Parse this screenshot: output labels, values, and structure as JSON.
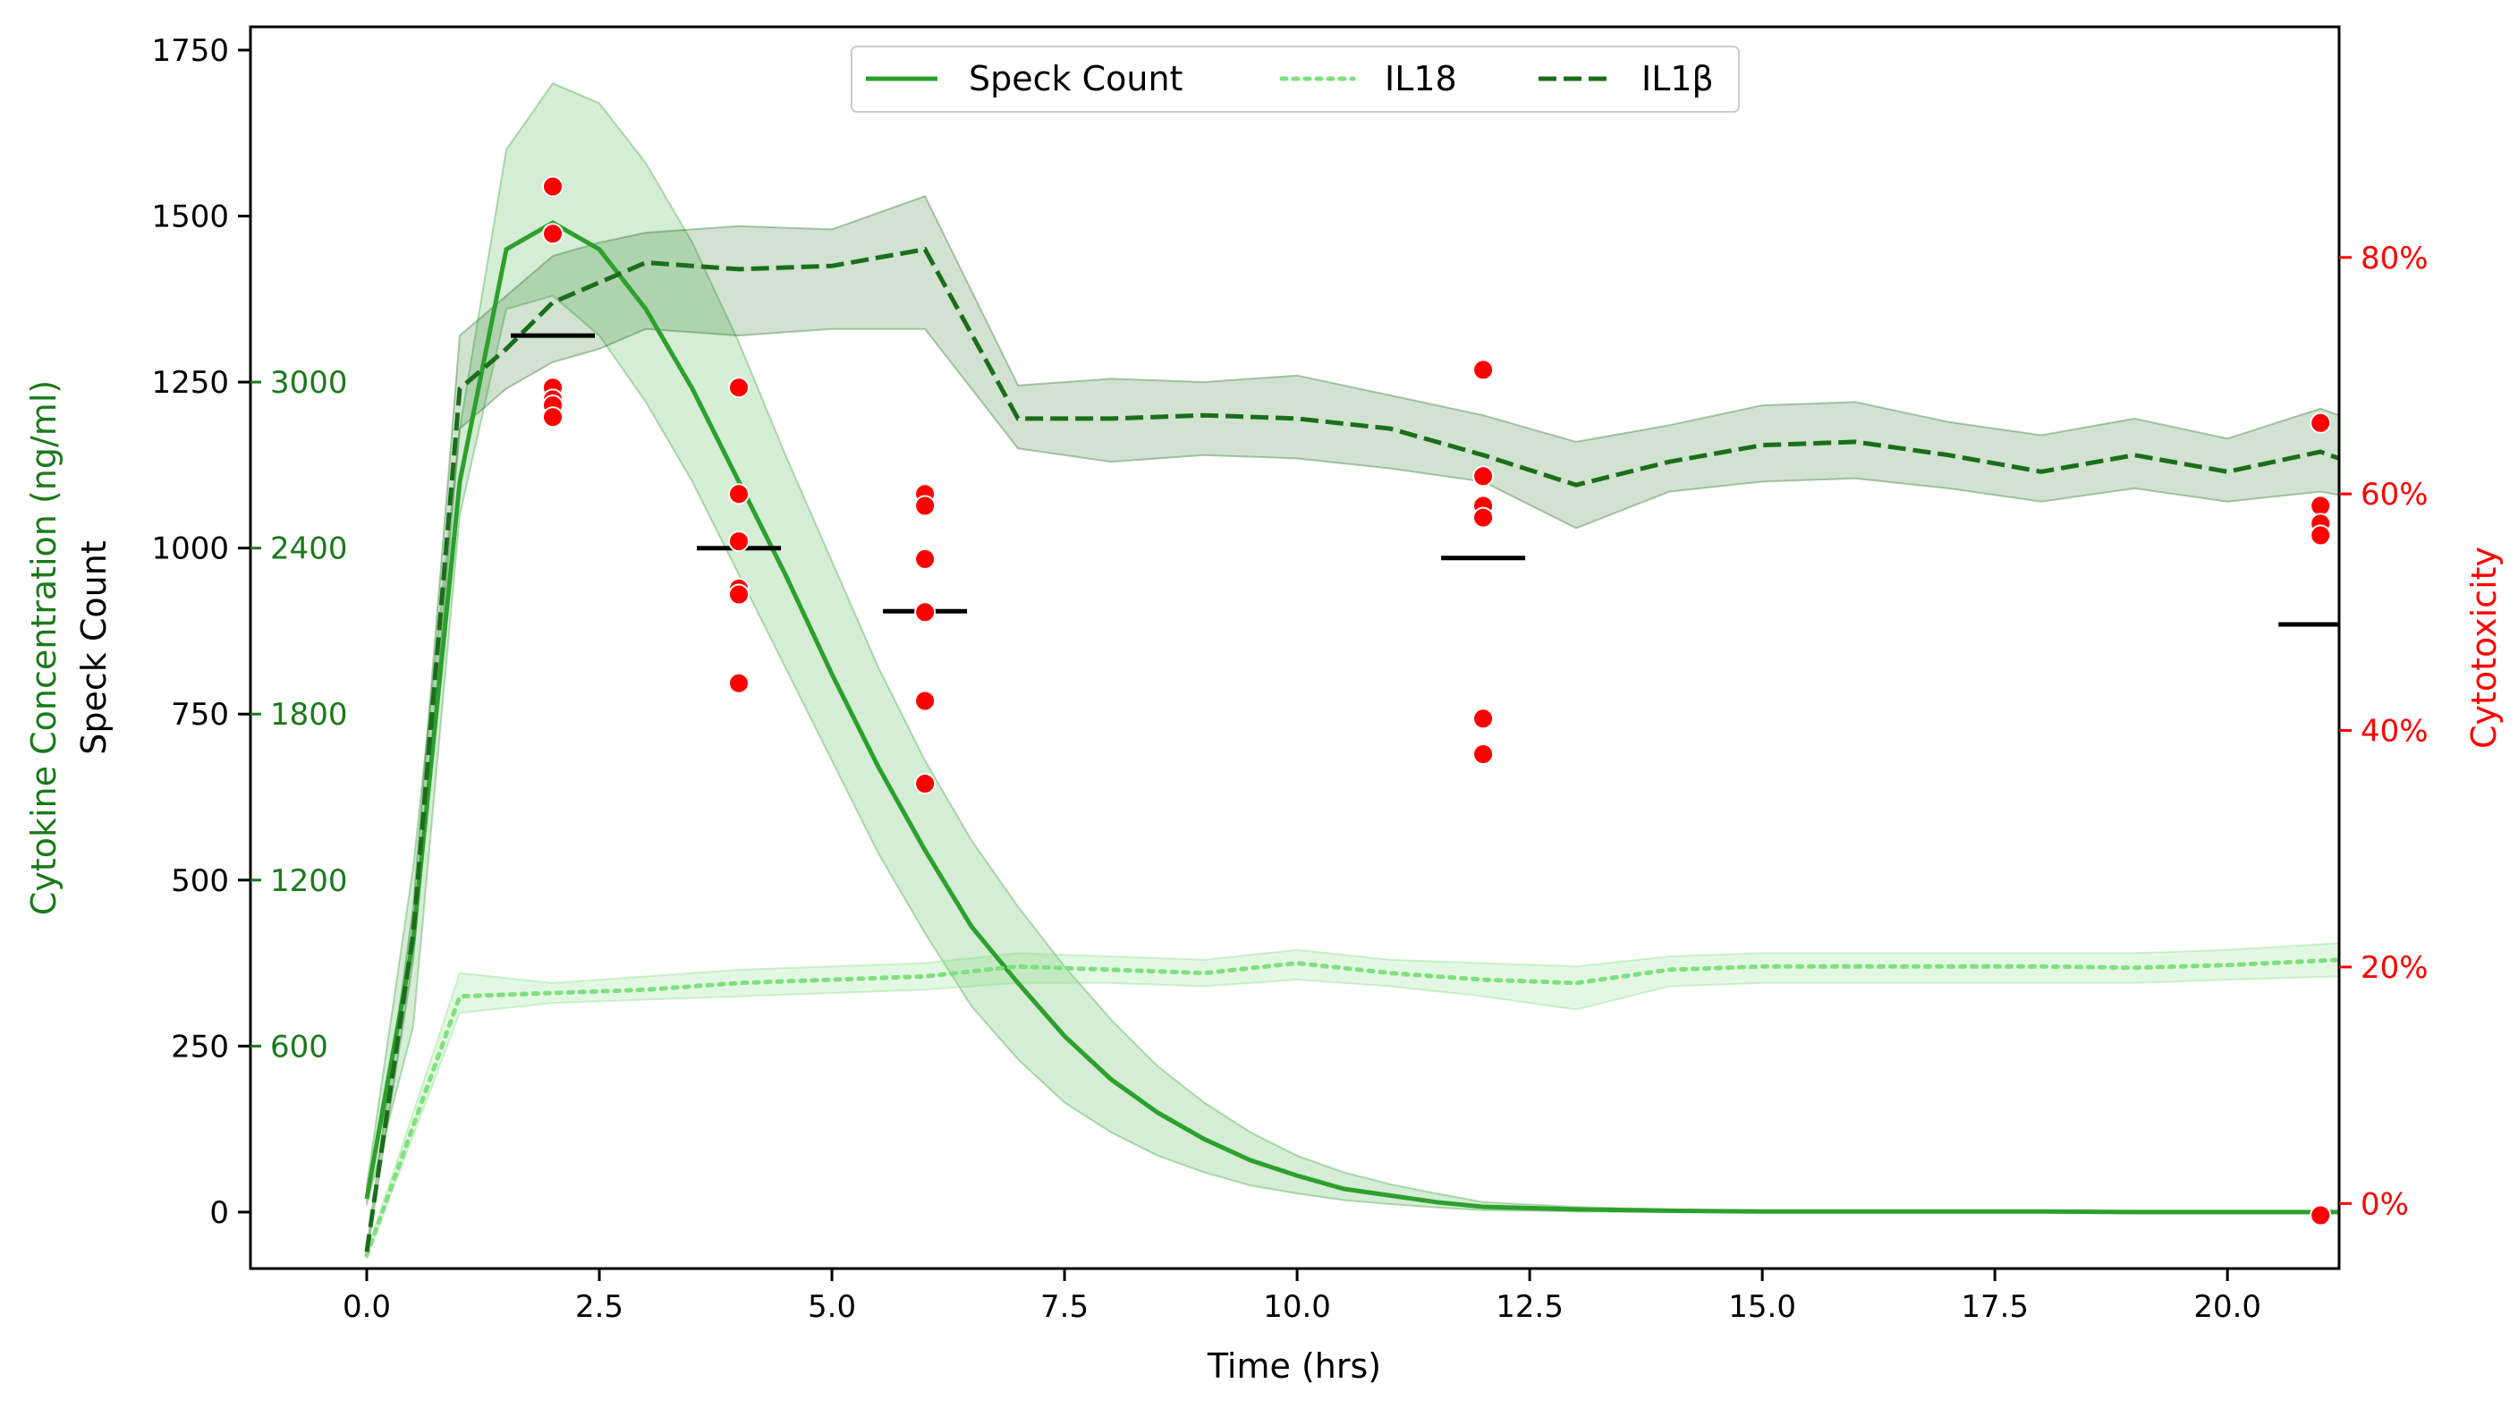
{
  "chart_data": {
    "type": "line",
    "title": "",
    "xlabel": "Time (hrs)",
    "xlim": [
      -1.25,
      21.2
    ],
    "x_ticks": [
      "0.0",
      "2.5",
      "5.0",
      "7.5",
      "10.0",
      "12.5",
      "15.0",
      "17.5",
      "20.0"
    ],
    "left_axis": {
      "label": "Speck Count",
      "ylim": [
        -85,
        1785
      ],
      "ticks": [
        "0",
        "250",
        "500",
        "750",
        "1000",
        "1250",
        "1500",
        "1750"
      ],
      "color": "#000000"
    },
    "cytokine_axis": {
      "label": "Cytokine Concentration (ng/ml)",
      "ticks": [
        "600",
        "1200",
        "1800",
        "2400",
        "3000"
      ],
      "color": "#1a7a1a"
    },
    "right_axis": {
      "label": "Cytotoxicity",
      "ylim": [
        -5.5,
        99.5
      ],
      "ticks": [
        "0%",
        "20%",
        "40%",
        "60%",
        "80%"
      ],
      "color": "#ff0000"
    },
    "legend": {
      "placement": "top-center",
      "entries": [
        "Speck Count",
        "IL18",
        "IL1β"
      ]
    },
    "series": [
      {
        "name": "Speck Count",
        "style": "solid",
        "color": "#2ca02c",
        "axis": "speck",
        "x": [
          0,
          0.5,
          1,
          1.5,
          2,
          2.5,
          3,
          3.5,
          4,
          4.5,
          5,
          5.5,
          6,
          6.5,
          7,
          7.5,
          8,
          8.5,
          9,
          9.5,
          10,
          10.5,
          11,
          11.5,
          12,
          13,
          14,
          15,
          16,
          17,
          18,
          19,
          20,
          21.2
        ],
        "y": [
          20,
          410,
          1100,
          1450,
          1490,
          1450,
          1360,
          1240,
          1100,
          960,
          810,
          670,
          545,
          430,
          345,
          265,
          200,
          150,
          110,
          78,
          55,
          35,
          25,
          15,
          8,
          4,
          2,
          1,
          1,
          1,
          1,
          0,
          0,
          0
        ],
        "lower": [
          10,
          280,
          1050,
          1360,
          1380,
          1320,
          1220,
          1100,
          960,
          820,
          680,
          540,
          420,
          310,
          230,
          165,
          120,
          85,
          60,
          40,
          28,
          18,
          12,
          7,
          3,
          1,
          0,
          0,
          0,
          0,
          0,
          0,
          0,
          0
        ],
        "upper": [
          40,
          520,
          1180,
          1600,
          1700,
          1670,
          1580,
          1460,
          1310,
          1140,
          980,
          820,
          680,
          560,
          460,
          370,
          290,
          220,
          165,
          120,
          85,
          60,
          42,
          28,
          15,
          8,
          4,
          2,
          2,
          2,
          2,
          1,
          1,
          1
        ]
      },
      {
        "name": "IL18",
        "style": "dotted",
        "color": "#7ee07e",
        "axis": "speck",
        "x": [
          0,
          1,
          2,
          3,
          4,
          5,
          6,
          7,
          8,
          9,
          10,
          11,
          12,
          13,
          14,
          15,
          16,
          17,
          18,
          19,
          20,
          21.2
        ],
        "y": [
          -65,
          325,
          330,
          335,
          345,
          350,
          355,
          370,
          365,
          360,
          375,
          360,
          350,
          345,
          365,
          370,
          370,
          370,
          370,
          368,
          372,
          380
        ],
        "lower": [
          -70,
          300,
          315,
          320,
          325,
          330,
          335,
          345,
          345,
          340,
          350,
          340,
          325,
          305,
          340,
          345,
          345,
          345,
          345,
          345,
          350,
          355
        ],
        "upper": [
          -60,
          360,
          345,
          355,
          365,
          370,
          375,
          390,
          385,
          380,
          395,
          380,
          375,
          370,
          385,
          390,
          390,
          390,
          390,
          390,
          395,
          405
        ]
      },
      {
        "name": "IL1β",
        "style": "dashed",
        "color": "#1a6e1a",
        "axis": "speck",
        "x": [
          0,
          0.5,
          1,
          1.5,
          2,
          2.5,
          3,
          4,
          5,
          6,
          7,
          8,
          9,
          10,
          11,
          12,
          13,
          14,
          15,
          16,
          17,
          18,
          19,
          20,
          21,
          21.2
        ],
        "y": [
          -60,
          420,
          1240,
          1300,
          1370,
          1400,
          1430,
          1420,
          1425,
          1450,
          1195,
          1195,
          1200,
          1195,
          1180,
          1140,
          1095,
          1130,
          1155,
          1160,
          1140,
          1115,
          1140,
          1115,
          1145,
          1135
        ],
        "lower": [
          -65,
          380,
          1180,
          1240,
          1280,
          1300,
          1330,
          1320,
          1330,
          1330,
          1150,
          1130,
          1140,
          1135,
          1120,
          1100,
          1030,
          1085,
          1100,
          1105,
          1090,
          1070,
          1090,
          1070,
          1085,
          1080
        ],
        "upper": [
          -55,
          460,
          1320,
          1380,
          1440,
          1460,
          1475,
          1485,
          1480,
          1530,
          1245,
          1255,
          1250,
          1260,
          1230,
          1200,
          1160,
          1185,
          1215,
          1220,
          1190,
          1170,
          1195,
          1165,
          1210,
          1200
        ]
      }
    ],
    "cytotoxicity_points": {
      "color": "#ff0000",
      "axis": "right",
      "points": [
        [
          2,
          86
        ],
        [
          2,
          82
        ],
        [
          2,
          69
        ],
        [
          2,
          68
        ],
        [
          2,
          67.5
        ],
        [
          2,
          66.5
        ],
        [
          4,
          69
        ],
        [
          4,
          60
        ],
        [
          4,
          56
        ],
        [
          4,
          52
        ],
        [
          4,
          51.5
        ],
        [
          4,
          44
        ],
        [
          6,
          60
        ],
        [
          6,
          59
        ],
        [
          6,
          54.5
        ],
        [
          6,
          50
        ],
        [
          6,
          42.5
        ],
        [
          6,
          35.5
        ],
        [
          12,
          70.5
        ],
        [
          12,
          61.5
        ],
        [
          12,
          59
        ],
        [
          12,
          58
        ],
        [
          12,
          41
        ],
        [
          12,
          38
        ],
        [
          21,
          66
        ],
        [
          21,
          59
        ],
        [
          21,
          57.5
        ],
        [
          21,
          56.5
        ],
        [
          21,
          -1
        ]
      ]
    },
    "cytotoxicity_means": {
      "color": "#000000",
      "axis": "speck",
      "x": [
        2,
        4,
        6,
        12,
        21
      ],
      "y": [
        1320,
        1000,
        905,
        985,
        885
      ]
    }
  }
}
